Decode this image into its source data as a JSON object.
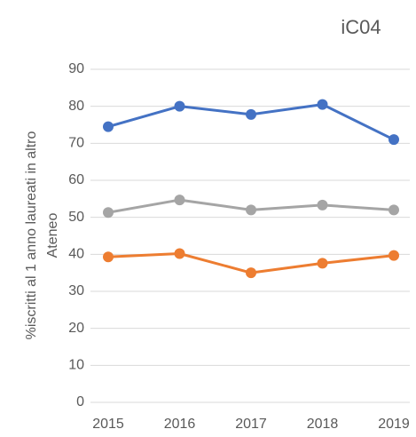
{
  "chart_data": {
    "type": "line",
    "title": "iC04",
    "ylabel": [
      "%iscritti al 1 anno laureati in altro",
      "Ateneo"
    ],
    "categories": [
      "2015",
      "2016",
      "2017",
      "2018",
      "2019"
    ],
    "series": [
      {
        "color": "#4472c4",
        "values": [
          74.5,
          80,
          77.8,
          80.5,
          71
        ]
      },
      {
        "color": "#a5a5a5",
        "values": [
          51.3,
          54.7,
          52,
          53.3,
          52
        ]
      },
      {
        "color": "#ed7d31",
        "values": [
          39.3,
          40.2,
          35,
          37.6,
          39.7
        ]
      }
    ],
    "ylim": [
      0,
      90
    ],
    "yticks": [
      0,
      10,
      20,
      30,
      40,
      50,
      60,
      70,
      80,
      90
    ],
    "grid": true
  }
}
